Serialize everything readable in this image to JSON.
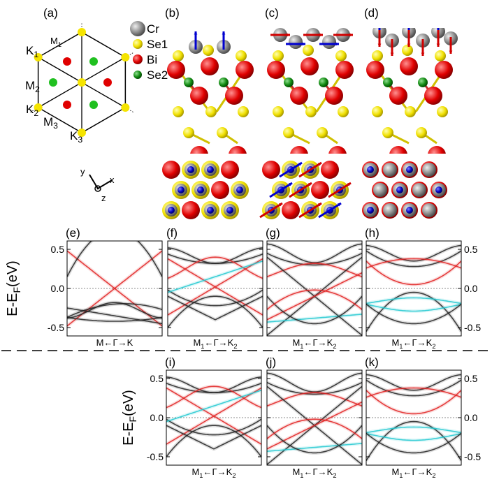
{
  "panel_labels": [
    "(a)",
    "(b)",
    "(c)",
    "(d)",
    "(e)",
    "(f)",
    "(g)",
    "(h)",
    "(i)",
    "(j)",
    "(k)"
  ],
  "legend": [
    "Cr",
    "Se1",
    "Bi",
    "Se2"
  ],
  "bz_labels": [
    {
      "l": "K",
      "i": "1"
    },
    {
      "l": "M",
      "i": "1"
    },
    {
      "l": "M",
      "i": "2"
    },
    {
      "l": "K",
      "i": "2"
    },
    {
      "l": "M",
      "i": "3"
    },
    {
      "l": "K",
      "i": "3"
    }
  ],
  "axes_labels": [
    "y",
    "x",
    "z"
  ],
  "energy_label": {
    "main": "E-E",
    "sub": "F",
    "unit": "(eV)"
  },
  "yticks": [
    "0.5",
    "0.0",
    "-0.5"
  ],
  "kpath_e": {
    "left": "M",
    "mid": "←Γ→",
    "right": "K"
  },
  "kpath": {
    "left": "M",
    "left_sub": "1",
    "mid": "←Γ→",
    "right": "K",
    "right_sub": "2"
  }
}
